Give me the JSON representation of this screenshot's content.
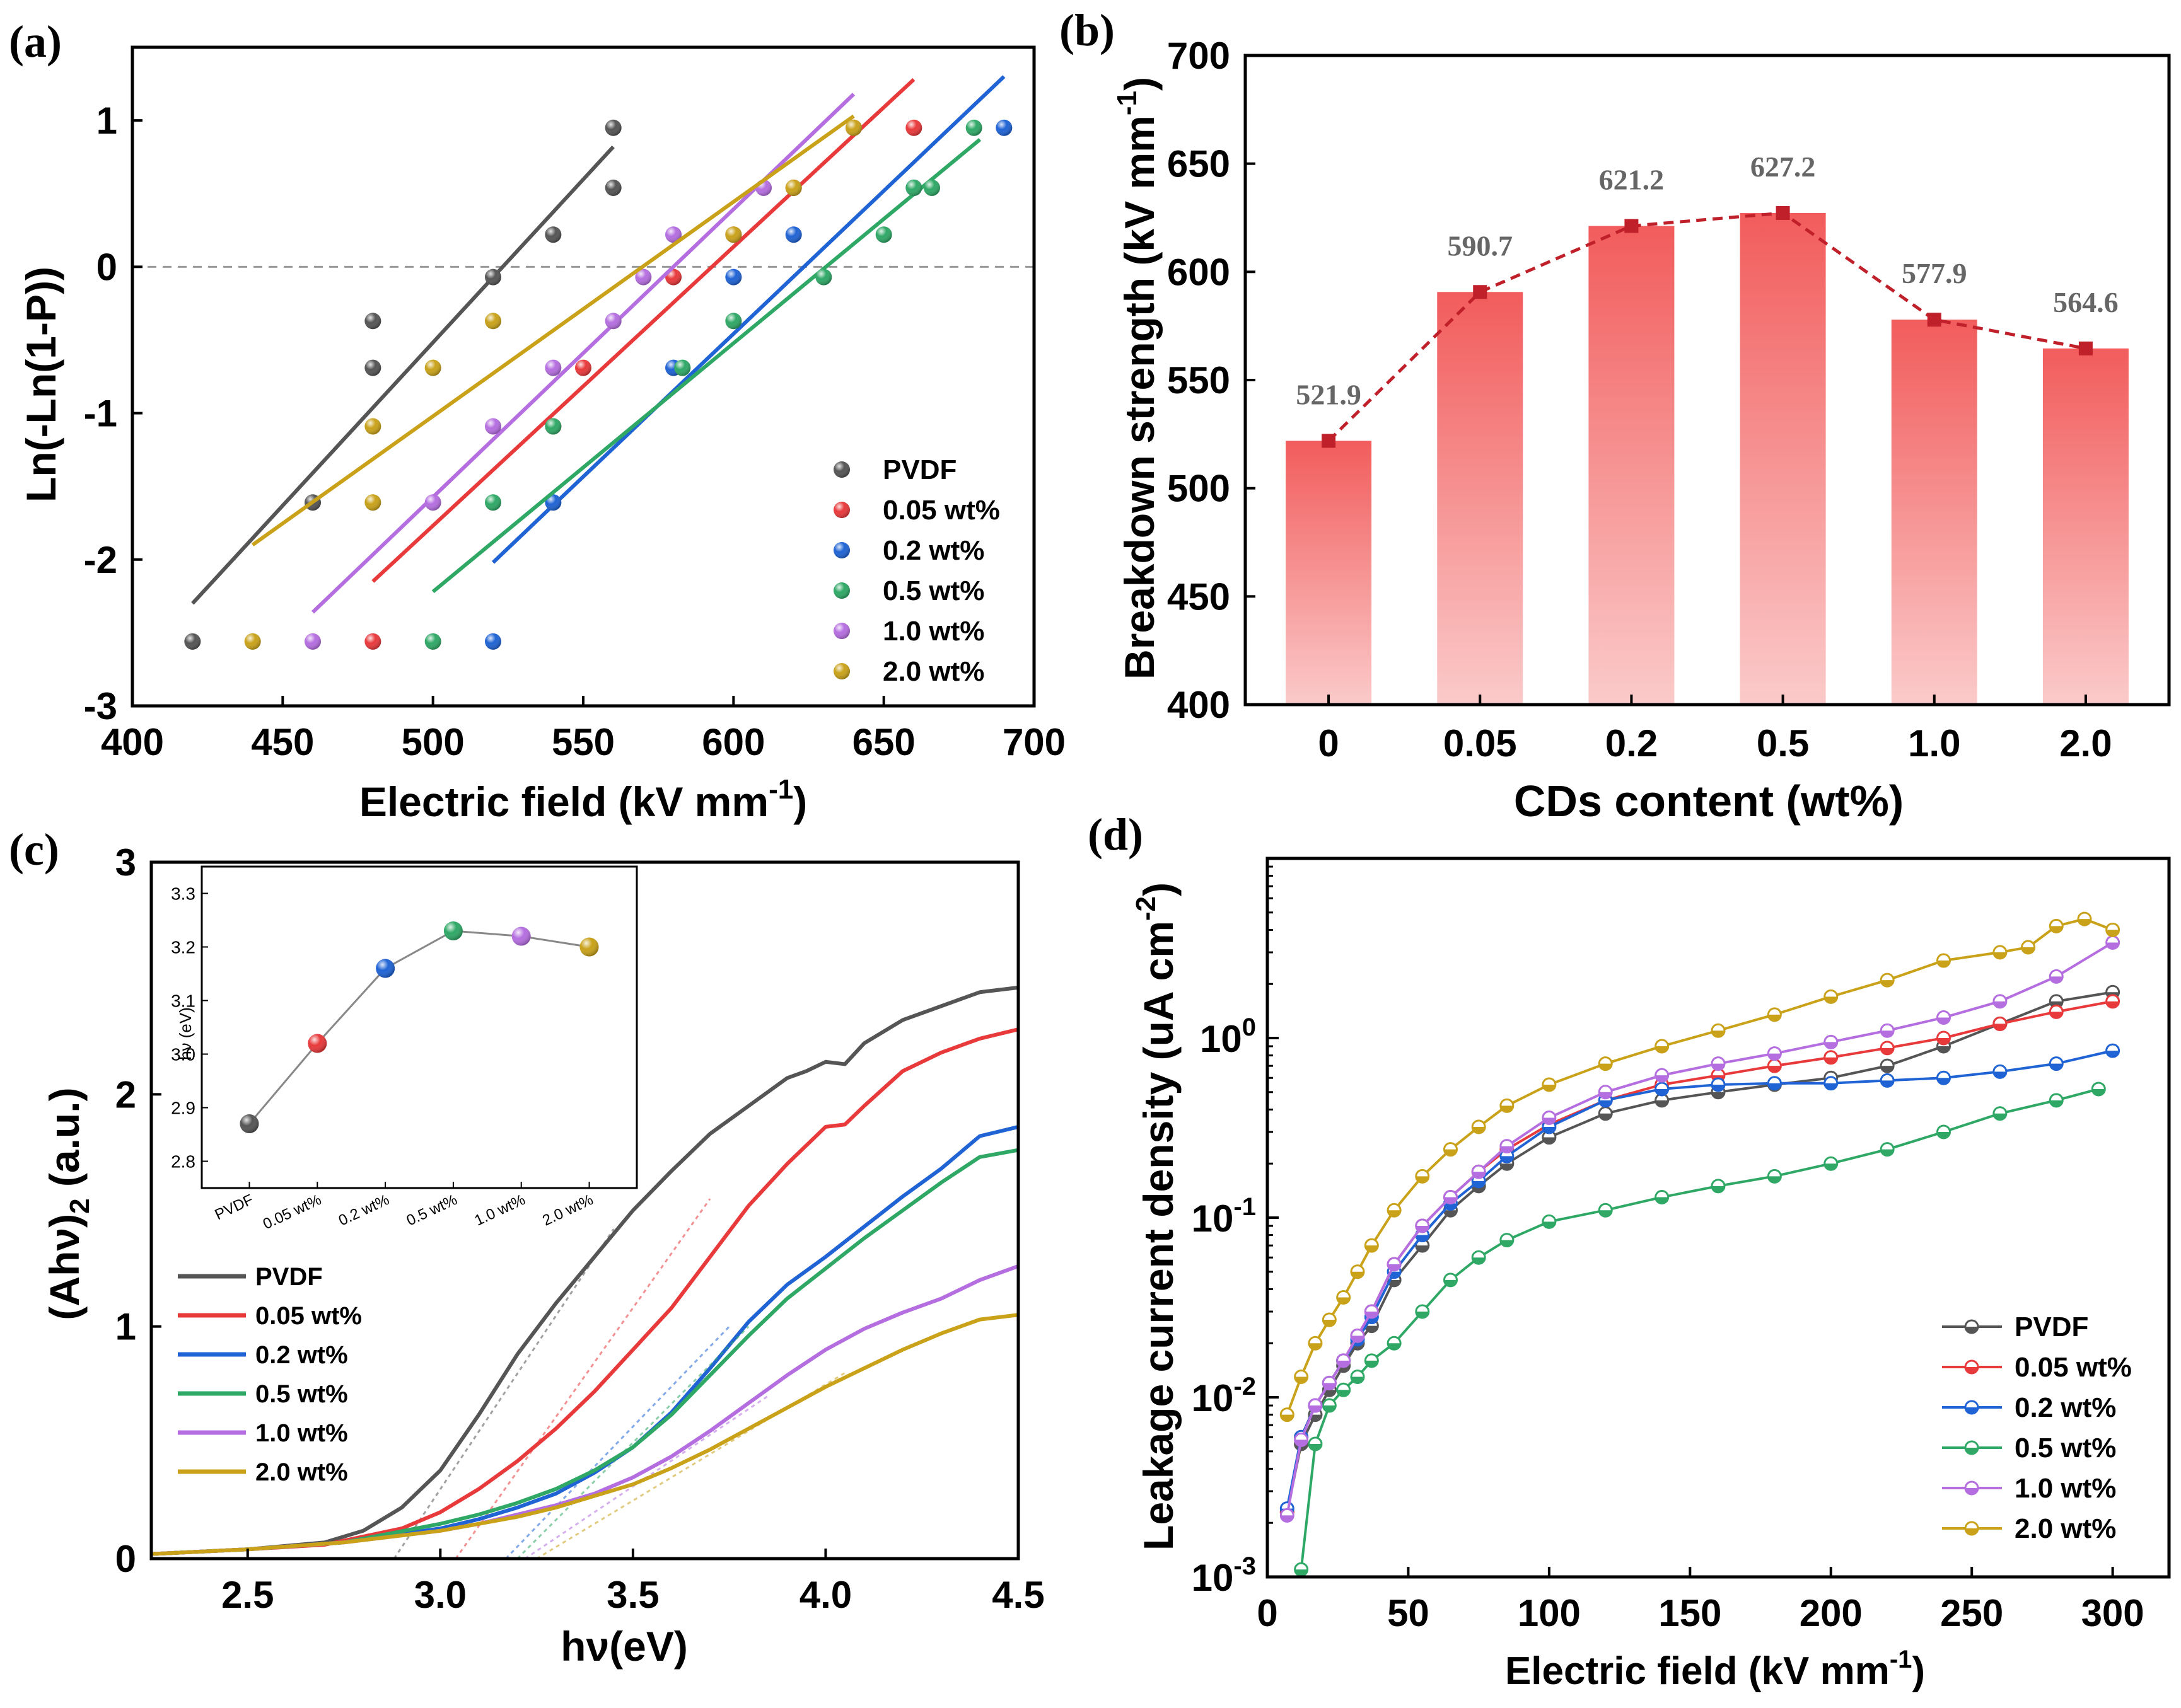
{
  "figure": {
    "panel_labels": [
      "(a)",
      "(b)",
      "(c)",
      "(d)"
    ]
  },
  "colors": {
    "PVDF": "#555555",
    "0.05 wt%": "#e8393b",
    "0.2 wt%": "#1f63d4",
    "0.5 wt%": "#2fa866",
    "1.0 wt%": "#b56ee0",
    "2.0 wt%": "#c9a21a",
    "bar": "#f25c5c",
    "bar_line": "#c0202a"
  },
  "chart_data": [
    {
      "id": "a",
      "type": "scatter",
      "xlabel": "Electric field (kV mm",
      "xlabel_sup": "-1",
      "xlabel_end": ")",
      "ylabel": "Ln(-Ln(1-P))",
      "xlim": [
        400,
        700
      ],
      "ylim": [
        -3,
        1.5
      ],
      "xticks": [
        "400",
        "450",
        "500",
        "550",
        "600",
        "650",
        "700"
      ],
      "yticks": [
        "-3",
        "-2",
        "-1",
        "0",
        "1"
      ],
      "legend_position": "bottom-right",
      "reference_line_y": 0,
      "series": [
        {
          "name": "PVDF",
          "x": [
            420,
            460,
            480,
            480,
            520,
            540,
            560,
            560
          ],
          "y": [
            -2.56,
            -1.61,
            -0.69,
            -0.37,
            -0.07,
            0.22,
            0.54,
            0.95
          ],
          "fit": [
            [
              420,
              -2.3
            ],
            [
              560,
              0.82
            ]
          ]
        },
        {
          "name": "0.05 wt%",
          "x": [
            480,
            540,
            550,
            580,
            600,
            620,
            640,
            660
          ],
          "y": [
            -2.56,
            -1.09,
            -0.69,
            -0.07,
            0.22,
            0.54,
            0.95,
            0.95
          ],
          "fit": [
            [
              480,
              -2.15
            ],
            [
              660,
              1.28
            ]
          ]
        },
        {
          "name": "0.2 wt%",
          "x": [
            520,
            540,
            580,
            600,
            620,
            660,
            690
          ],
          "y": [
            -2.56,
            -1.61,
            -0.69,
            -0.07,
            0.22,
            0.54,
            0.95
          ],
          "fit": [
            [
              520,
              -2.02
            ],
            [
              690,
              1.3
            ]
          ]
        },
        {
          "name": "0.5 wt%",
          "x": [
            500,
            520,
            540,
            583,
            600,
            630,
            650,
            660,
            666,
            680
          ],
          "y": [
            -2.56,
            -1.61,
            -1.09,
            -0.69,
            -0.37,
            -0.07,
            0.22,
            0.54,
            0.54,
            0.95
          ],
          "fit": [
            [
              500,
              -2.22
            ],
            [
              682,
              0.87
            ]
          ]
        },
        {
          "name": "1.0 wt%",
          "x": [
            460,
            500,
            520,
            540,
            560,
            570,
            580,
            610
          ],
          "y": [
            -2.56,
            -1.61,
            -1.09,
            -0.69,
            -0.37,
            -0.07,
            0.22,
            0.54
          ],
          "fit": [
            [
              460,
              -2.36
            ],
            [
              640,
              1.18
            ]
          ]
        },
        {
          "name": "2.0 wt%",
          "x": [
            440,
            480,
            480,
            500,
            520,
            600,
            620,
            640
          ],
          "y": [
            -2.56,
            -1.61,
            -1.09,
            -0.69,
            -0.37,
            0.22,
            0.54,
            0.95
          ],
          "fit": [
            [
              440,
              -1.9
            ],
            [
              640,
              1.03
            ]
          ]
        }
      ]
    },
    {
      "id": "b",
      "type": "bar",
      "xlabel": "CDs content (wt%)",
      "ylabel": "Breakdown strength (kV mm",
      "ylabel_sup": "-1",
      "ylabel_end": ")",
      "categories": [
        "0",
        "0.05",
        "0.2",
        "0.5",
        "1.0",
        "2.0"
      ],
      "values": [
        521.9,
        590.7,
        621.2,
        627.2,
        577.9,
        564.6
      ],
      "data_labels": [
        "521.9",
        "590.7",
        "621.2",
        "627.2",
        "577.9",
        "564.6"
      ],
      "ylim": [
        400,
        700
      ],
      "yticks": [
        "400",
        "450",
        "500",
        "550",
        "600",
        "650",
        "700"
      ],
      "trend_line": "dashed"
    },
    {
      "id": "c",
      "type": "line",
      "xlabel": "hν(eV)",
      "ylabel": "(Ahν)",
      "ylabel_sub": "2",
      "ylabel_end": " (a.u.)",
      "xlim": [
        2.25,
        4.5
      ],
      "ylim": [
        0,
        3
      ],
      "xticks": [
        "2.5",
        "3.0",
        "3.5",
        "4.0",
        "4.5"
      ],
      "yticks": [
        "0",
        "1",
        "2",
        "3"
      ],
      "legend_position": "left-middle",
      "series": [
        {
          "name": "PVDF",
          "x": [
            2.25,
            2.5,
            2.7,
            2.8,
            2.9,
            3.0,
            3.1,
            3.2,
            3.3,
            3.4,
            3.5,
            3.6,
            3.7,
            3.8,
            3.9,
            3.95,
            4.0,
            4.05,
            4.1,
            4.2,
            4.3,
            4.4,
            4.5
          ],
          "y": [
            0.02,
            0.04,
            0.07,
            0.12,
            0.22,
            0.38,
            0.62,
            0.88,
            1.1,
            1.3,
            1.5,
            1.67,
            1.83,
            1.95,
            2.07,
            2.1,
            2.14,
            2.13,
            2.22,
            2.32,
            2.38,
            2.44,
            2.46
          ],
          "tangent": [
            [
              2.88,
              0
            ],
            [
              3.45,
              1.42
            ]
          ]
        },
        {
          "name": "0.05 wt%",
          "x": [
            2.25,
            2.5,
            2.7,
            2.9,
            3.0,
            3.1,
            3.2,
            3.3,
            3.4,
            3.5,
            3.6,
            3.7,
            3.8,
            3.9,
            4.0,
            4.05,
            4.1,
            4.2,
            4.3,
            4.4,
            4.5
          ],
          "y": [
            0.02,
            0.04,
            0.06,
            0.13,
            0.2,
            0.3,
            0.42,
            0.56,
            0.72,
            0.9,
            1.08,
            1.3,
            1.52,
            1.7,
            1.86,
            1.87,
            1.95,
            2.1,
            2.18,
            2.24,
            2.28
          ],
          "tangent": [
            [
              3.04,
              0
            ],
            [
              3.7,
              1.55
            ]
          ]
        },
        {
          "name": "0.2 wt%",
          "x": [
            2.25,
            2.5,
            2.75,
            3.0,
            3.1,
            3.2,
            3.3,
            3.4,
            3.5,
            3.6,
            3.7,
            3.8,
            3.9,
            4.0,
            4.1,
            4.2,
            4.3,
            4.4,
            4.5
          ],
          "y": [
            0.02,
            0.04,
            0.07,
            0.13,
            0.17,
            0.22,
            0.28,
            0.37,
            0.48,
            0.63,
            0.82,
            1.02,
            1.18,
            1.3,
            1.43,
            1.56,
            1.68,
            1.82,
            1.86
          ],
          "tangent": [
            [
              3.17,
              0
            ],
            [
              3.75,
              1.0
            ]
          ]
        },
        {
          "name": "0.5 wt%",
          "x": [
            2.25,
            2.5,
            2.75,
            3.0,
            3.1,
            3.2,
            3.3,
            3.4,
            3.5,
            3.6,
            3.7,
            3.8,
            3.9,
            4.0,
            4.1,
            4.2,
            4.3,
            4.4,
            4.5
          ],
          "y": [
            0.02,
            0.04,
            0.07,
            0.15,
            0.19,
            0.24,
            0.3,
            0.38,
            0.48,
            0.62,
            0.79,
            0.96,
            1.12,
            1.25,
            1.38,
            1.5,
            1.62,
            1.73,
            1.76
          ],
          "tangent": [
            [
              3.2,
              0
            ],
            [
              3.8,
              1.0
            ]
          ]
        },
        {
          "name": "1.0 wt%",
          "x": [
            2.25,
            2.5,
            2.75,
            3.0,
            3.1,
            3.2,
            3.3,
            3.4,
            3.5,
            3.6,
            3.7,
            3.8,
            3.9,
            4.0,
            4.1,
            4.2,
            4.3,
            4.4,
            4.5
          ],
          "y": [
            0.02,
            0.04,
            0.07,
            0.12,
            0.15,
            0.19,
            0.23,
            0.28,
            0.35,
            0.44,
            0.55,
            0.67,
            0.79,
            0.9,
            0.99,
            1.06,
            1.12,
            1.2,
            1.26
          ],
          "tangent": [
            [
              3.22,
              0
            ],
            [
              3.85,
              0.7
            ]
          ]
        },
        {
          "name": "2.0 wt%",
          "x": [
            2.25,
            2.5,
            2.75,
            3.0,
            3.1,
            3.2,
            3.3,
            3.4,
            3.5,
            3.6,
            3.7,
            3.8,
            3.9,
            4.0,
            4.1,
            4.2,
            4.3,
            4.4,
            4.5
          ],
          "y": [
            0.02,
            0.04,
            0.07,
            0.12,
            0.15,
            0.18,
            0.22,
            0.27,
            0.32,
            0.39,
            0.47,
            0.56,
            0.65,
            0.74,
            0.82,
            0.9,
            0.97,
            1.03,
            1.05
          ],
          "tangent": [
            [
              3.25,
              0
            ],
            [
              4.05,
              0.8
            ]
          ]
        }
      ],
      "inset": {
        "type": "line",
        "ylabel": "hν (eV)",
        "categories": [
          "PVDF",
          "0.05 wt%",
          "0.2 wt%",
          "0.5 wt%",
          "1.0 wt%",
          "2.0 wt%"
        ],
        "values": [
          2.87,
          3.02,
          3.16,
          3.23,
          3.22,
          3.2
        ],
        "ylim": [
          2.75,
          3.35
        ],
        "yticks": [
          "2.8",
          "2.9",
          "3.0",
          "3.1",
          "3.2",
          "3.3"
        ]
      }
    },
    {
      "id": "d",
      "type": "line",
      "scale_y": "log",
      "xlabel": "Electric field (kV mm",
      "xlabel_sup": "-1",
      "xlabel_end": ")",
      "ylabel": "Leakage current density (uA cm",
      "ylabel_sup": "-2",
      "ylabel_end": ")",
      "xlim": [
        0,
        320
      ],
      "ylim": [
        0.001,
        10
      ],
      "xticks": [
        "0",
        "50",
        "100",
        "150",
        "200",
        "250",
        "300"
      ],
      "yticks": [
        {
          "base": "10",
          "exp": "-3"
        },
        {
          "base": "10",
          "exp": "-2"
        },
        {
          "base": "10",
          "exp": "-1"
        },
        {
          "base": "10",
          "exp": "0"
        }
      ],
      "legend_position": "bottom-right",
      "series": [
        {
          "name": "PVDF",
          "x": [
            7,
            12,
            17,
            22,
            27,
            32,
            37,
            45,
            55,
            65,
            75,
            85,
            100,
            120,
            140,
            160,
            180,
            200,
            220,
            240,
            260,
            280,
            300
          ],
          "y": [
            0.0023,
            0.0055,
            0.008,
            0.011,
            0.015,
            0.02,
            0.025,
            0.045,
            0.07,
            0.11,
            0.15,
            0.2,
            0.28,
            0.38,
            0.45,
            0.5,
            0.55,
            0.6,
            0.7,
            0.9,
            1.2,
            1.6,
            1.8
          ]
        },
        {
          "name": "0.05 wt%",
          "x": [
            7,
            12,
            17,
            22,
            27,
            32,
            37,
            45,
            55,
            65,
            75,
            85,
            100,
            120,
            140,
            160,
            180,
            200,
            220,
            240,
            260,
            280,
            300
          ],
          "y": [
            0.0023,
            0.006,
            0.009,
            0.012,
            0.016,
            0.022,
            0.03,
            0.055,
            0.09,
            0.13,
            0.18,
            0.24,
            0.33,
            0.45,
            0.55,
            0.62,
            0.7,
            0.78,
            0.88,
            1.0,
            1.2,
            1.4,
            1.6
          ]
        },
        {
          "name": "0.2 wt%",
          "x": [
            7,
            12,
            17,
            22,
            27,
            32,
            37,
            45,
            55,
            65,
            75,
            85,
            100,
            120,
            140,
            160,
            180,
            200,
            220,
            240,
            260,
            280,
            300
          ],
          "y": [
            0.0024,
            0.006,
            0.009,
            0.012,
            0.016,
            0.021,
            0.028,
            0.05,
            0.08,
            0.12,
            0.16,
            0.22,
            0.32,
            0.45,
            0.52,
            0.55,
            0.56,
            0.56,
            0.58,
            0.6,
            0.65,
            0.72,
            0.85
          ]
        },
        {
          "name": "0.5 wt%",
          "x": [
            12,
            17,
            22,
            27,
            32,
            37,
            45,
            55,
            65,
            75,
            85,
            100,
            120,
            140,
            160,
            180,
            200,
            220,
            240,
            260,
            280,
            295
          ],
          "y": [
            0.0011,
            0.0055,
            0.009,
            0.011,
            0.013,
            0.016,
            0.02,
            0.03,
            0.045,
            0.06,
            0.075,
            0.095,
            0.11,
            0.13,
            0.15,
            0.17,
            0.2,
            0.24,
            0.3,
            0.38,
            0.45,
            0.52
          ]
        },
        {
          "name": "1.0 wt%",
          "x": [
            7,
            12,
            17,
            22,
            27,
            32,
            37,
            45,
            55,
            65,
            75,
            85,
            100,
            120,
            140,
            160,
            180,
            200,
            220,
            240,
            260,
            280,
            300
          ],
          "y": [
            0.0022,
            0.0058,
            0.009,
            0.012,
            0.016,
            0.022,
            0.03,
            0.055,
            0.09,
            0.13,
            0.18,
            0.25,
            0.36,
            0.5,
            0.62,
            0.72,
            0.82,
            0.95,
            1.1,
            1.3,
            1.6,
            2.2,
            3.4
          ]
        },
        {
          "name": "2.0 wt%",
          "x": [
            7,
            12,
            17,
            22,
            27,
            32,
            37,
            45,
            55,
            65,
            75,
            85,
            100,
            120,
            140,
            160,
            180,
            200,
            220,
            240,
            260,
            270,
            280,
            290,
            300
          ],
          "y": [
            0.008,
            0.013,
            0.02,
            0.027,
            0.036,
            0.05,
            0.07,
            0.11,
            0.17,
            0.24,
            0.32,
            0.42,
            0.55,
            0.72,
            0.9,
            1.1,
            1.35,
            1.7,
            2.1,
            2.7,
            3.0,
            3.2,
            4.2,
            4.6,
            4.0
          ]
        }
      ]
    }
  ]
}
